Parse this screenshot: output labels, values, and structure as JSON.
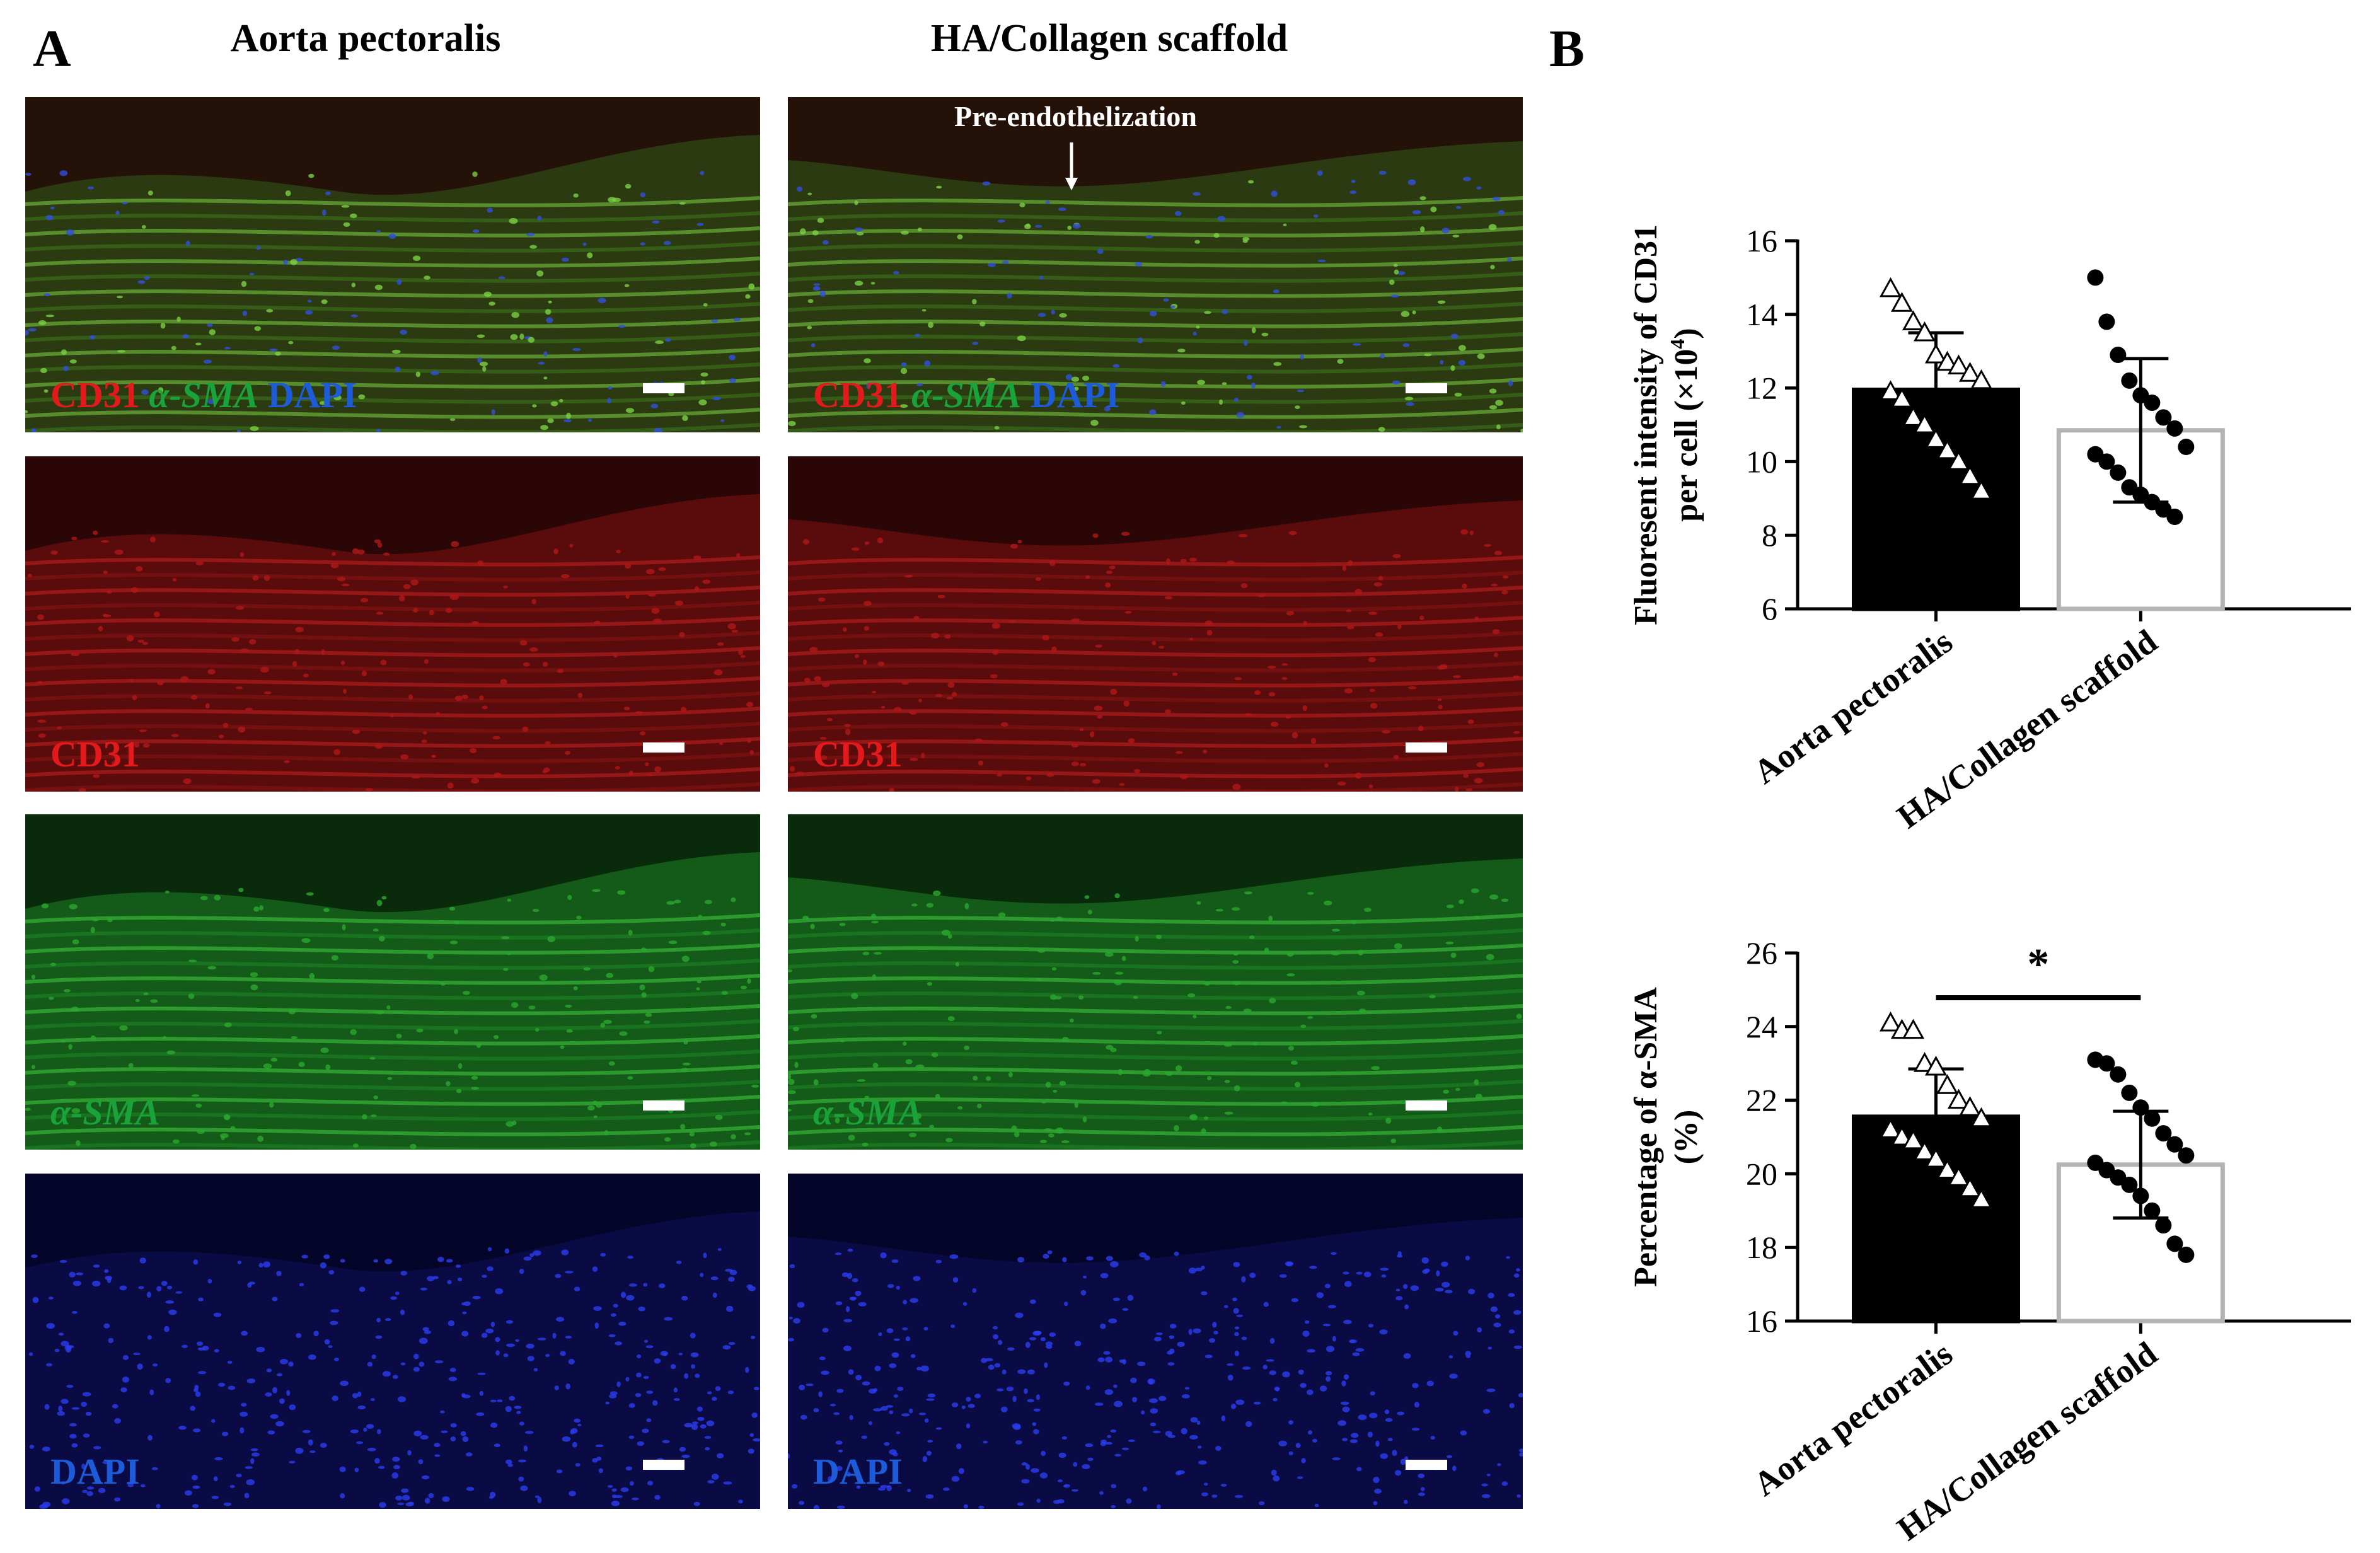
{
  "panel_a": {
    "letter": "A",
    "col_left_title": "Aorta pectoralis",
    "col_right_title": "HA/Collagen scaffold",
    "annotation": "Pre-endothelization",
    "merge_labels": {
      "cd31": "CD31",
      "sma": "α-SMA",
      "dapi": "DAPI"
    },
    "rows": [
      {
        "label": "CD31",
        "color": "#e31a1c"
      },
      {
        "label": "α-SMA",
        "color": "#1aa33a"
      },
      {
        "label": "DAPI",
        "color": "#1e5bd8"
      }
    ]
  },
  "panel_b": {
    "letter": "B"
  },
  "chart_data": [
    {
      "type": "bar",
      "title": "",
      "xlabel": "",
      "ylabel": "Fluorescent intensity of CD31 per cell (×10⁴)",
      "ylabel_line1": "Fluoresent intensity of CD31",
      "ylabel_line2": "per cell (×10",
      "ylabel_sup": "4",
      "ylabel_close": ")",
      "ylim": [
        6,
        16
      ],
      "yticks": [
        "6",
        "8",
        "10",
        "12",
        "14",
        "16"
      ],
      "categories": [
        "Aorta pectoralis",
        "HA/Collagen scaffold"
      ],
      "values": [
        11.95,
        10.85
      ],
      "sd": [
        1.55,
        1.95
      ],
      "bar_fill": [
        "#000000",
        "#ffffff"
      ],
      "bar_edge": [
        "#000000",
        "#b3b3b3"
      ],
      "points": [
        {
          "marker": "triangle",
          "values": [
            14.7,
            14.3,
            13.8,
            13.5,
            12.9,
            12.7,
            12.6,
            12.4,
            12.2,
            11.9,
            11.7,
            11.2,
            11.0,
            10.6,
            10.3,
            10.0,
            9.6,
            9.2
          ]
        },
        {
          "marker": "circle",
          "values": [
            15.0,
            13.8,
            12.9,
            12.2,
            11.8,
            11.6,
            11.2,
            10.9,
            10.4,
            10.2,
            10.0,
            9.7,
            9.3,
            9.1,
            8.9,
            8.7,
            8.5
          ]
        }
      ],
      "significance": ""
    },
    {
      "type": "bar",
      "title": "",
      "xlabel": "",
      "ylabel": "Percentage of α-SMA (%)",
      "ylabel_line1": "Percentage of α-SMA",
      "ylabel_line2": "(%)",
      "ylim": [
        16,
        26
      ],
      "yticks": [
        "16",
        "18",
        "20",
        "22",
        "24",
        "26"
      ],
      "categories": [
        "Aorta pectoralis",
        "HA/Collagen scaffold"
      ],
      "values": [
        21.55,
        20.25
      ],
      "sd": [
        1.3,
        1.45
      ],
      "bar_fill": [
        "#000000",
        "#ffffff"
      ],
      "bar_edge": [
        "#000000",
        "#b3b3b3"
      ],
      "points": [
        {
          "marker": "triangle",
          "values": [
            24.1,
            23.9,
            23.9,
            23.0,
            22.9,
            22.4,
            22.0,
            21.8,
            21.5,
            21.2,
            21.0,
            20.9,
            20.6,
            20.4,
            20.1,
            19.9,
            19.6,
            19.3
          ]
        },
        {
          "marker": "circle",
          "values": [
            23.1,
            23.0,
            22.7,
            22.2,
            21.8,
            21.5,
            21.1,
            20.8,
            20.5,
            20.3,
            20.1,
            19.9,
            19.7,
            19.4,
            19.0,
            18.6,
            18.1,
            17.8
          ]
        }
      ],
      "significance": "*"
    }
  ]
}
